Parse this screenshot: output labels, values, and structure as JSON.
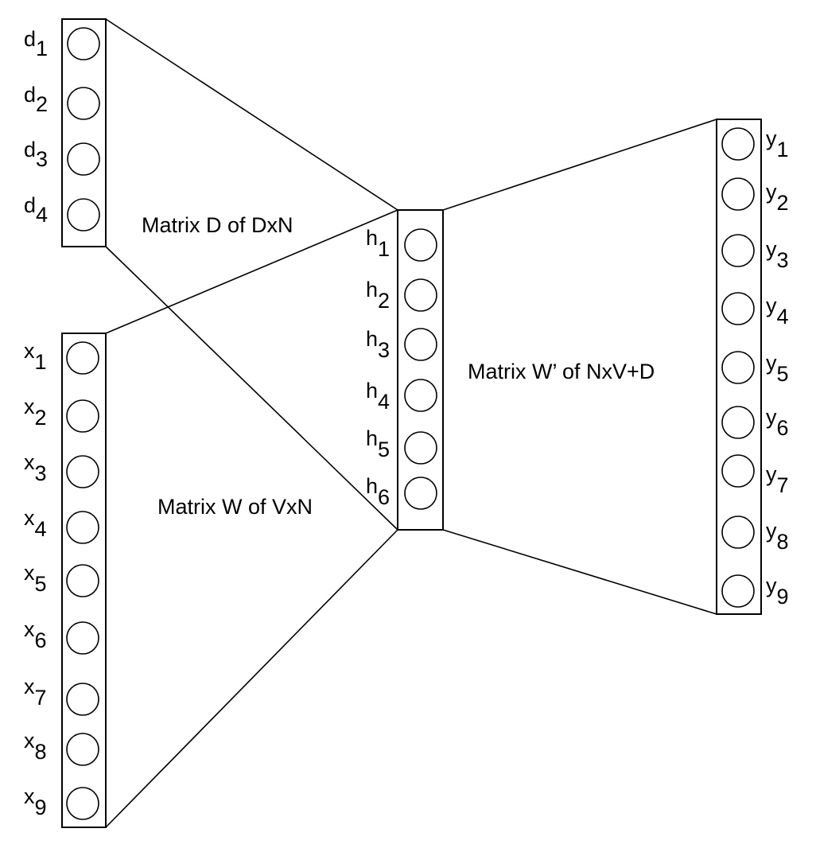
{
  "matrices": {
    "d_matrix_label": "Matrix D of DxN",
    "w_matrix_label": "Matrix W of VxN",
    "w_prime_matrix_label": "Matrix W’ of NxV+D"
  },
  "layers": [
    {
      "id": "d-layer",
      "base": "d",
      "nodes": [
        {
          "base": "d",
          "sub": "1"
        },
        {
          "base": "d",
          "sub": "2"
        },
        {
          "base": "d",
          "sub": "3"
        },
        {
          "base": "d",
          "sub": "4"
        }
      ]
    },
    {
      "id": "x-layer",
      "base": "x",
      "nodes": [
        {
          "base": "x",
          "sub": "1"
        },
        {
          "base": "x",
          "sub": "2"
        },
        {
          "base": "x",
          "sub": "3"
        },
        {
          "base": "x",
          "sub": "4"
        },
        {
          "base": "x",
          "sub": "5"
        },
        {
          "base": "x",
          "sub": "6"
        },
        {
          "base": "x",
          "sub": "7"
        },
        {
          "base": "x",
          "sub": "8"
        },
        {
          "base": "x",
          "sub": "9"
        }
      ]
    },
    {
      "id": "h-layer",
      "base": "h",
      "nodes": [
        {
          "base": "h",
          "sub": "1"
        },
        {
          "base": "h",
          "sub": "2"
        },
        {
          "base": "h",
          "sub": "3"
        },
        {
          "base": "h",
          "sub": "4"
        },
        {
          "base": "h",
          "sub": "5"
        },
        {
          "base": "h",
          "sub": "6"
        }
      ]
    },
    {
      "id": "y-layer",
      "base": "y",
      "nodes": [
        {
          "base": "y",
          "sub": "1"
        },
        {
          "base": "y",
          "sub": "2"
        },
        {
          "base": "y",
          "sub": "3"
        },
        {
          "base": "y",
          "sub": "4"
        },
        {
          "base": "y",
          "sub": "5"
        },
        {
          "base": "y",
          "sub": "6"
        },
        {
          "base": "y",
          "sub": "7"
        },
        {
          "base": "y",
          "sub": "8"
        },
        {
          "base": "y",
          "sub": "9"
        }
      ]
    }
  ]
}
